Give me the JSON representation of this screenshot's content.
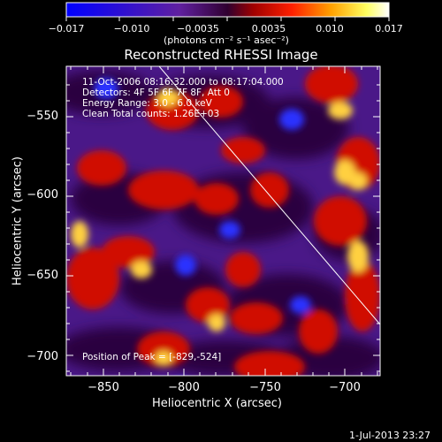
{
  "colorbar": {
    "tick_labels": [
      "−0.017",
      "−0.010",
      "−0.0035",
      "0.0035",
      "0.010",
      "0.017"
    ],
    "unit_label": "(photons cm⁻² s⁻¹ asec⁻²)"
  },
  "title": "Reconstructed RHESSI Image",
  "annotations": {
    "time_range": "11-Oct-2006 08:16:32.000 to 08:17:04.000",
    "detectors": "Detectors: 4F 5F 6F 7F 8F, Att 0",
    "energy": "Energy Range: 3.0 - 6.0 keV",
    "clean": "Clean    Total counts: 1.26E+03",
    "peak": "Position of Peak = [-829,-524]"
  },
  "footer": {
    "timestamp": "1-Jul-2013 23:27"
  },
  "chart_data": {
    "type": "heatmap",
    "title": "Reconstructed RHESSI Image",
    "xlabel": "Heliocentric X (arcsec)",
    "ylabel": "Heliocentric Y (arcsec)",
    "x_ticks": [
      -850,
      -800,
      -750,
      -700
    ],
    "x_tick_labels": [
      "−850",
      "−800",
      "−750",
      "−700"
    ],
    "y_ticks": [
      -550,
      -600,
      -650,
      -700
    ],
    "y_tick_labels": [
      "−550",
      "−600",
      "−650",
      "−700"
    ],
    "xlim": [
      -875,
      -680
    ],
    "ylim": [
      -710,
      -520
    ],
    "colorbar_range": [
      -0.017,
      0.017
    ],
    "colormap": [
      "#0000ff",
      "#4000c0",
      "#5a1a9a",
      "#c00000",
      "#ff4000",
      "#ffb000",
      "#ffff80",
      "#ffffff"
    ],
    "peak_position": [
      -829,
      -524
    ]
  }
}
